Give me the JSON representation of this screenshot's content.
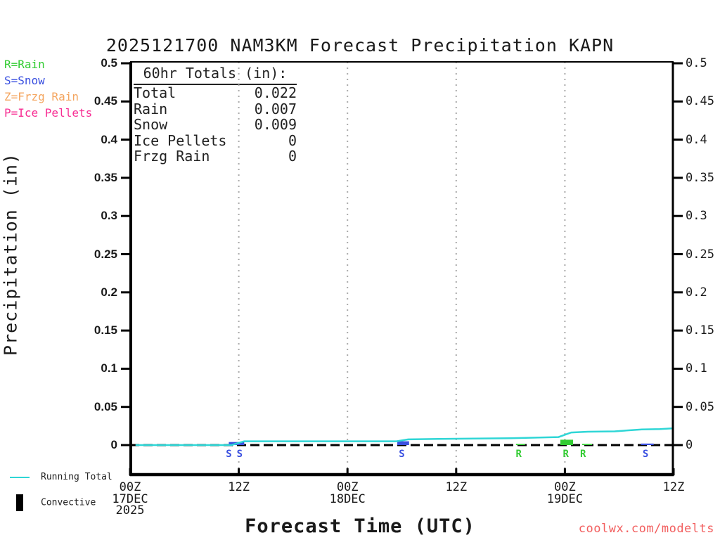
{
  "header": {
    "title": "2025121700 NAM3KM Forecast Precipitation KAPN"
  },
  "type_legend": {
    "items": [
      {
        "label": "R=Rain",
        "color": "#33cc33"
      },
      {
        "label": "S=Snow",
        "color": "#3a50e0"
      },
      {
        "label": "Z=Frzg Rain",
        "color": "#f4a55f"
      },
      {
        "label": "P=Ice Pellets",
        "color": "#f72e93"
      }
    ]
  },
  "totals_panel": {
    "heading": "60hr Totals (in):",
    "rows": [
      {
        "label": "Total",
        "value": "0.022"
      },
      {
        "label": "Rain",
        "value": "0.007"
      },
      {
        "label": "Snow",
        "value": "0.009"
      },
      {
        "label": "Ice Pellets",
        "value": "0"
      },
      {
        "label": "Frzg Rain",
        "value": "0"
      }
    ]
  },
  "axes": {
    "y_label": "Precipitation (in)",
    "x_label": "Forecast Time (UTC)"
  },
  "bottom_legend": {
    "running_total": "Running Total",
    "convective": "Convective"
  },
  "watermark": {
    "text": "coolwx.com/modelts",
    "color": "#f25f5f"
  },
  "chart_data": {
    "type": "line",
    "title": "2025121700 NAM3KM Forecast Precipitation KAPN",
    "xlabel": "Forecast Time (UTC)",
    "ylabel": "Precipitation (in)",
    "ylim": [
      0,
      0.5
    ],
    "x_range_hours": [
      0,
      60
    ],
    "grid": "vertical-dotted-at-12h",
    "legend_position": "bottom-left",
    "colors": {
      "rain": "#33cc33",
      "snow": "#3a50e0",
      "frzg_rain": "#f4a55f",
      "ice_pellets": "#f72e93",
      "running_total": "#2fd6d6",
      "grid": "#aaaaaa",
      "zero_line": "#000000"
    },
    "y_ticks": [
      {
        "v": 0,
        "label": "0"
      },
      {
        "v": 0.05,
        "label": "0.05"
      },
      {
        "v": 0.1,
        "label": "0.1"
      },
      {
        "v": 0.15,
        "label": "0.15"
      },
      {
        "v": 0.2,
        "label": "0.2"
      },
      {
        "v": 0.25,
        "label": "0.25"
      },
      {
        "v": 0.3,
        "label": "0.3"
      },
      {
        "v": 0.35,
        "label": "0.35"
      },
      {
        "v": 0.4,
        "label": "0.4"
      },
      {
        "v": 0.45,
        "label": "0.45"
      },
      {
        "v": 0.5,
        "label": "0.5"
      }
    ],
    "x_ticks": [
      {
        "hour": 0,
        "lines": [
          "00Z",
          "17DEC",
          "2025"
        ]
      },
      {
        "hour": 12,
        "lines": [
          "12Z"
        ]
      },
      {
        "hour": 24,
        "lines": [
          "00Z",
          "18DEC"
        ]
      },
      {
        "hour": 36,
        "lines": [
          "12Z"
        ]
      },
      {
        "hour": 48,
        "lines": [
          "00Z",
          "19DEC"
        ]
      },
      {
        "hour": 60,
        "lines": [
          "12Z"
        ]
      }
    ],
    "grid_hours": [
      12,
      24,
      36,
      48
    ],
    "series": [
      {
        "name": "Running Total",
        "color_key": "running_total",
        "points": [
          [
            0.6,
            0
          ],
          [
            11.2,
            0
          ],
          [
            12.6,
            0.005
          ],
          [
            29.4,
            0.005
          ],
          [
            30.7,
            0.0075
          ],
          [
            34,
            0.008
          ],
          [
            42,
            0.009
          ],
          [
            47.3,
            0.0105
          ],
          [
            48.7,
            0.0165
          ],
          [
            50.5,
            0.0175
          ],
          [
            53.5,
            0.018
          ],
          [
            56.5,
            0.0205
          ],
          [
            58.5,
            0.021
          ],
          [
            60,
            0.022
          ]
        ]
      }
    ],
    "convective_bars": [
      {
        "start_hour": 10.9,
        "end_hour": 12.6,
        "height_in": 0.004,
        "ptype": "snow"
      },
      {
        "start_hour": 29.5,
        "end_hour": 30.8,
        "height_in": 0.005,
        "ptype": "snow"
      },
      {
        "start_hour": 42.6,
        "end_hour": 43.6,
        "height_in": 0.0015,
        "ptype": "rain"
      },
      {
        "start_hour": 47.5,
        "end_hour": 48.9,
        "height_in": 0.007,
        "ptype": "rain"
      },
      {
        "start_hour": 49.9,
        "end_hour": 51.0,
        "height_in": 0.0015,
        "ptype": "rain"
      },
      {
        "start_hour": 56.4,
        "end_hour": 57.8,
        "height_in": 0.002,
        "ptype": "snow"
      }
    ],
    "ptype_markers": [
      {
        "hour": 10.9,
        "letter": "S",
        "ptype": "snow"
      },
      {
        "hour": 12.1,
        "letter": "S",
        "ptype": "snow"
      },
      {
        "hour": 30.0,
        "letter": "S",
        "ptype": "snow"
      },
      {
        "hour": 42.9,
        "letter": "R",
        "ptype": "rain"
      },
      {
        "hour": 48.1,
        "letter": "R",
        "ptype": "rain"
      },
      {
        "hour": 50.0,
        "letter": "R",
        "ptype": "rain"
      },
      {
        "hour": 56.9,
        "letter": "S",
        "ptype": "snow"
      }
    ],
    "totals_in": {
      "total": 0.022,
      "rain": 0.007,
      "snow": 0.009,
      "ice_pellets": 0,
      "frzg_rain": 0
    }
  }
}
